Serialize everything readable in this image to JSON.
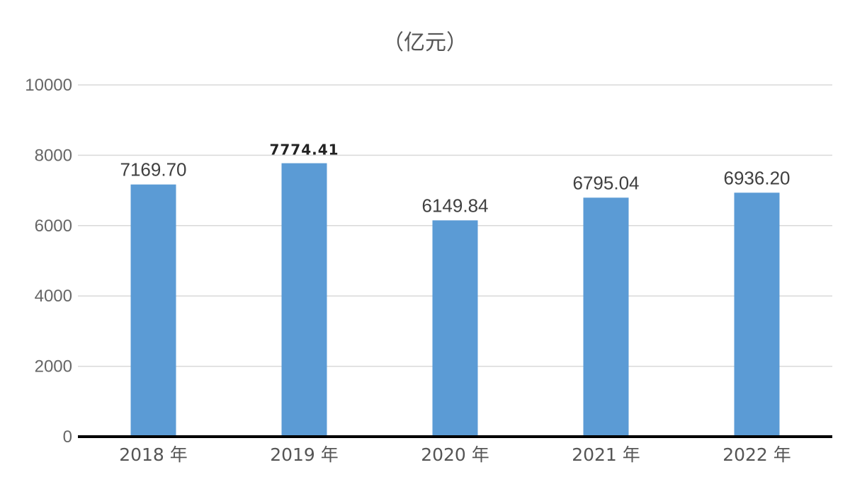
{
  "unit_label": "（亿元）",
  "chart_data": {
    "type": "bar",
    "title": "",
    "unit": "（亿元）",
    "categories": [
      "2018 年",
      "2019 年",
      "2020 年",
      "2021 年",
      "2022 年"
    ],
    "values": [
      7169.7,
      7774.41,
      6149.84,
      6795.04,
      6936.2
    ],
    "data_labels": [
      "7169.70",
      "7774.41",
      "6149.84",
      "6795.04",
      "6936.20"
    ],
    "ylim": [
      0,
      10000
    ],
    "yticks": [
      "0",
      "2000",
      "4000",
      "6000",
      "8000",
      "10000"
    ],
    "ytick_values": [
      0,
      2000,
      4000,
      6000,
      8000,
      10000
    ],
    "grid": true,
    "legend": "none",
    "colors": {
      "bar": "#5b9bd5",
      "grid": "#d9d9d9",
      "baseline": "#000000"
    }
  }
}
